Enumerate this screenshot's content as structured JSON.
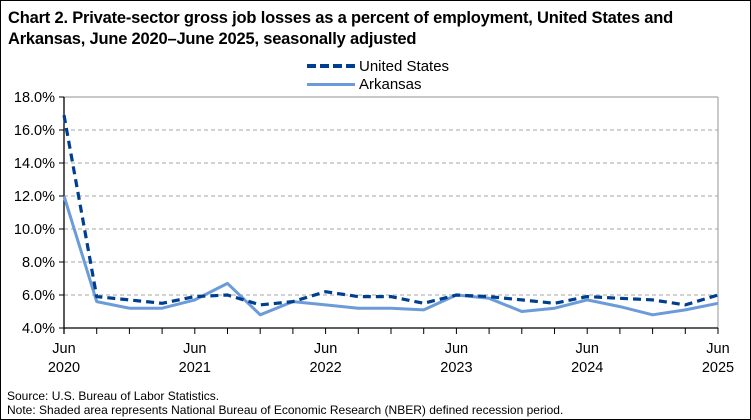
{
  "title": "Chart 2. Private-sector gross job losses as a percent of employment, United States and Arkansas, June 2020–June 2025, seasonally adjusted",
  "legend": [
    {
      "label": "United States",
      "style": "dashed",
      "color": "#003F8F"
    },
    {
      "label": "Arkansas",
      "style": "solid",
      "color": "#6B9BD8"
    }
  ],
  "footer": {
    "source": "Source: U.S. Bureau of Labor Statistics.",
    "note": "Note: Shaded area represents National Bureau of Economic Research (NBER) defined recession period."
  },
  "chart_data": {
    "type": "line",
    "title": "Chart 2. Private-sector gross job losses as a percent of employment, United States and Arkansas, June 2020–June 2025, seasonally adjusted",
    "xlabel": "",
    "ylabel": "",
    "ylim": [
      4.0,
      18.0
    ],
    "yticks": [
      "4.0%",
      "6.0%",
      "8.0%",
      "10.0%",
      "12.0%",
      "14.0%",
      "16.0%",
      "18.0%"
    ],
    "xtick_labels": [
      {
        "index": 0,
        "line1": "Jun",
        "line2": "2020"
      },
      {
        "index": 4,
        "line1": "Jun",
        "line2": "2021"
      },
      {
        "index": 8,
        "line1": "Jun",
        "line2": "2022"
      },
      {
        "index": 12,
        "line1": "Jun",
        "line2": "2023"
      },
      {
        "index": 16,
        "line1": "Jun",
        "line2": "2024"
      },
      {
        "index": 20,
        "line1": "Jun",
        "line2": "2025"
      }
    ],
    "x": [
      "Jun 2020",
      "Sep 2020",
      "Dec 2020",
      "Mar 2021",
      "Jun 2021",
      "Sep 2021",
      "Dec 2021",
      "Mar 2022",
      "Jun 2022",
      "Sep 2022",
      "Dec 2022",
      "Mar 2023",
      "Jun 2023",
      "Sep 2023",
      "Dec 2023",
      "Mar 2024",
      "Jun 2024",
      "Sep 2024",
      "Dec 2024",
      "Mar 2025",
      "Jun 2025"
    ],
    "series": [
      {
        "name": "United States",
        "style": "dashed",
        "color": "#003F8F",
        "values": [
          16.9,
          5.9,
          5.7,
          5.5,
          5.9,
          6.0,
          5.4,
          5.6,
          6.2,
          5.9,
          5.9,
          5.5,
          6.0,
          5.9,
          5.7,
          5.5,
          5.9,
          5.8,
          5.7,
          5.4,
          6.0
        ]
      },
      {
        "name": "Arkansas",
        "style": "solid",
        "color": "#6B9BD8",
        "values": [
          12.0,
          5.6,
          5.2,
          5.2,
          5.7,
          6.7,
          4.8,
          5.6,
          5.4,
          5.2,
          5.2,
          5.1,
          6.0,
          5.8,
          5.0,
          5.2,
          5.7,
          5.3,
          4.8,
          5.1,
          5.5
        ]
      }
    ],
    "grid": true,
    "grid_style": "dashed horizontal",
    "legend_position": "top center"
  }
}
